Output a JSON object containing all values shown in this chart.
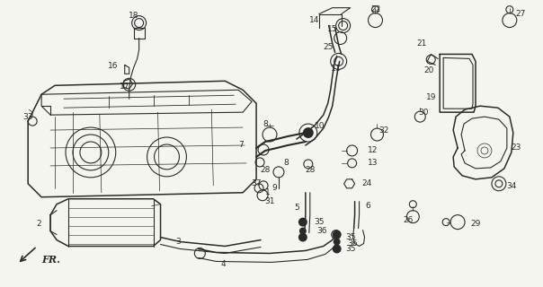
{
  "background_color": "#f5f5f0",
  "fig_width": 6.04,
  "fig_height": 3.2,
  "dpi": 100,
  "line_color": "#2a2a2a",
  "label_fontsize": 6.5
}
